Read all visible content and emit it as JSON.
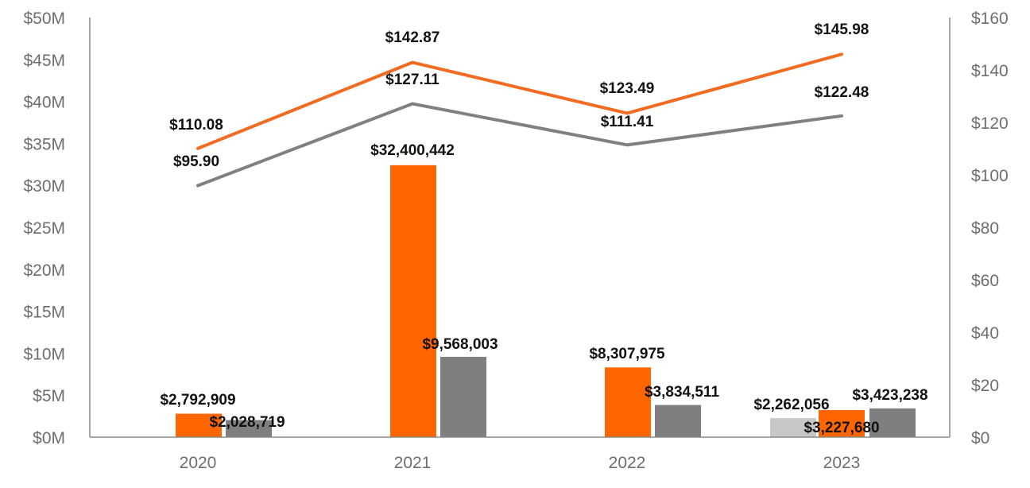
{
  "chart_data": {
    "type": "bar",
    "title": "",
    "xlabel": "",
    "ylabel": "",
    "categories": [
      "2020",
      "2021",
      "2022",
      "2023"
    ],
    "ylim": [
      0,
      50000000
    ],
    "y2lim": [
      0,
      160
    ],
    "y_ticks": [
      "$0M",
      "$5M",
      "$10M",
      "$15M",
      "$20M",
      "$25M",
      "$30M",
      "$35M",
      "$40M",
      "$45M",
      "$50M"
    ],
    "y2_ticks": [
      "$0",
      "$20",
      "$40",
      "$60",
      "$80",
      "$100",
      "$120",
      "$140",
      "$160"
    ],
    "bar_series": [
      {
        "name": "orange-bars",
        "color": "#FF6600",
        "values": [
          2792909,
          32400442,
          8307975,
          3227680
        ],
        "labels": [
          "$2,792,909",
          "$32,400,442",
          "$8,307,975",
          "$3,227,680"
        ]
      },
      {
        "name": "gray-bars",
        "color": "#7F7F7F",
        "values": [
          2028719,
          9568003,
          3834511,
          3423238
        ],
        "labels": [
          "$2,028,719",
          "$9,568,003",
          "$3,834,511",
          "$3,423,238"
        ]
      },
      {
        "name": "light-gray-bars",
        "color": "#C8C8C8",
        "values": [
          null,
          null,
          null,
          2262056
        ],
        "labels": [
          null,
          null,
          null,
          "$2,262,056"
        ]
      }
    ],
    "line_series": [
      {
        "name": "orange-line",
        "color": "#F26B21",
        "axis": "right",
        "values": [
          110.08,
          142.87,
          123.49,
          145.98
        ],
        "labels": [
          "$110.08",
          "$142.87",
          "$123.49",
          "$145.98"
        ]
      },
      {
        "name": "gray-line",
        "color": "#808080",
        "axis": "right",
        "values": [
          95.9,
          127.11,
          111.41,
          122.48
        ],
        "labels": [
          "$95.90",
          "$127.11",
          "$111.41",
          "$122.48"
        ]
      }
    ]
  }
}
